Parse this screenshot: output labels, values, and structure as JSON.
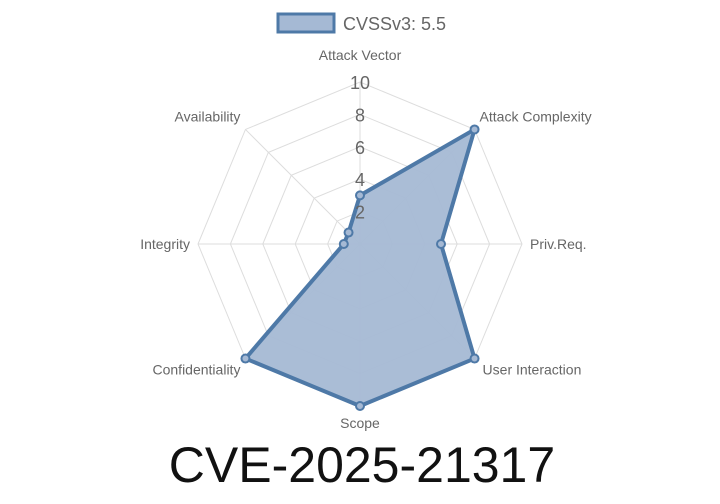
{
  "chart_data": {
    "type": "radar",
    "title": "CVE-2025-21317",
    "categories": [
      "Attack Vector",
      "Attack Complexity",
      "Priv.Req.",
      "User Interaction",
      "Scope",
      "Confidentiality",
      "Integrity",
      "Availability"
    ],
    "series": [
      {
        "name": "CVSSv3: 5.5",
        "values": [
          3,
          10,
          5,
          10,
          10,
          10,
          1,
          1
        ]
      }
    ],
    "rlim": [
      0,
      10
    ],
    "ticks": [
      "2",
      "4",
      "6",
      "8",
      "10"
    ],
    "tick_values": [
      2,
      4,
      6,
      8,
      10
    ],
    "legend": "top",
    "grid": true,
    "colors": {
      "line": "#4e79a7",
      "fill": "#a5b9d4",
      "grid": "#dddddd"
    }
  }
}
